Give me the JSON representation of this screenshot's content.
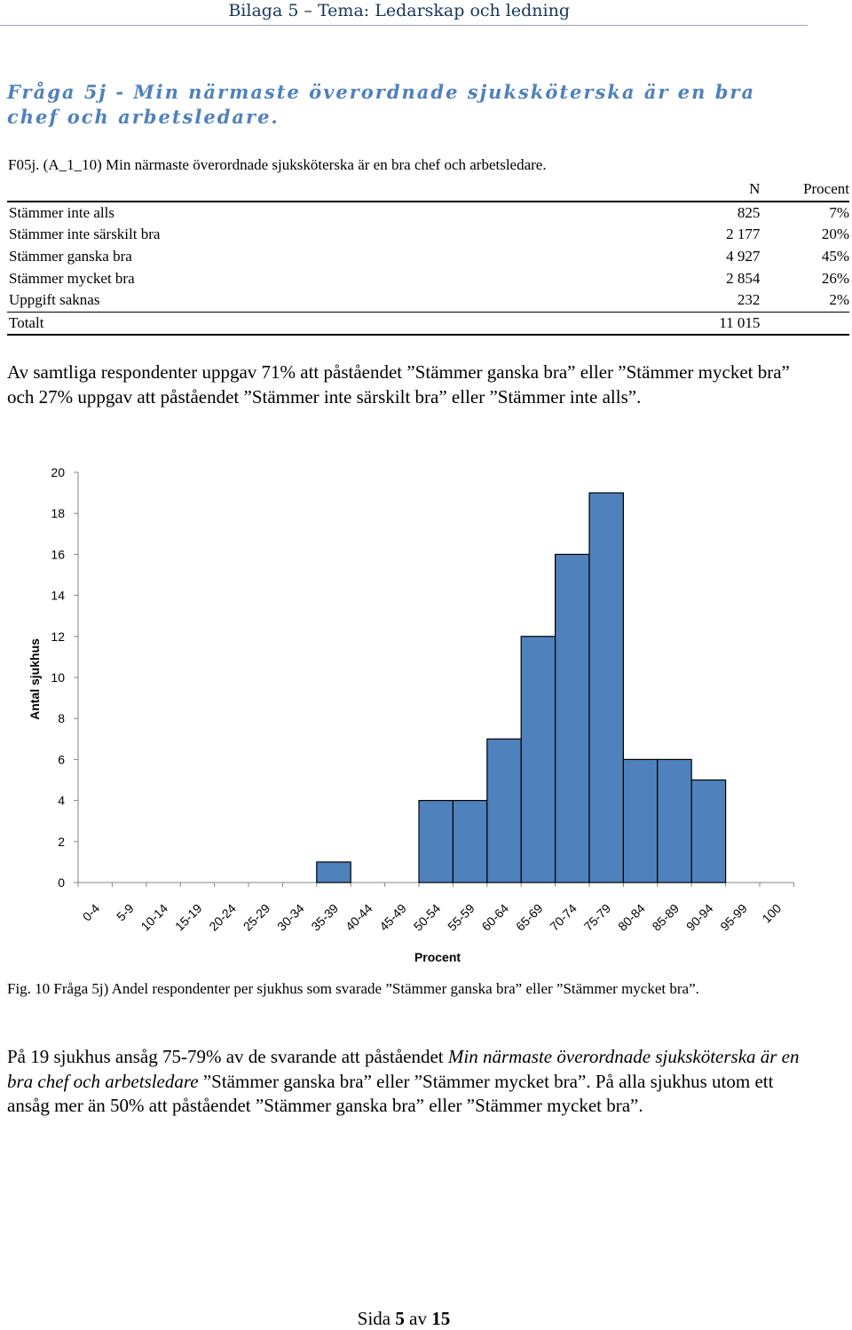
{
  "header": {
    "title": "Bilaga 5 – Tema: Ledarskap och ledning"
  },
  "question": "Fråga 5j - Min närmaste överordnade sjuksköterska är en bra chef och arbetsledare.",
  "table": {
    "title": "F05j. (A_1_10) Min närmaste överordnade sjuksköterska är en bra chef och arbetsledare.",
    "columns": [
      "N",
      "Procent"
    ],
    "rows": [
      {
        "label": "Stämmer inte alls",
        "n": "825",
        "pct": "7%"
      },
      {
        "label": "Stämmer inte särskilt bra",
        "n": "2 177",
        "pct": "20%"
      },
      {
        "label": "Stämmer ganska bra",
        "n": "4 927",
        "pct": "45%"
      },
      {
        "label": "Stämmer mycket bra",
        "n": "2 854",
        "pct": "26%"
      },
      {
        "label": "Uppgift saknas",
        "n": "232",
        "pct": "2%"
      }
    ],
    "total": {
      "label": "Totalt",
      "n": "11 015",
      "pct": ""
    }
  },
  "paragraph1": "Av samtliga respondenter uppgav 71% att påståendet ”Stämmer ganska bra” eller ”Stämmer mycket bra” och 27% uppgav att påståendet ”Stämmer inte särskilt bra” eller ”Stämmer inte alls”.",
  "chart_data": {
    "type": "bar",
    "categories": [
      "0-4",
      "5-9",
      "10-14",
      "15-19",
      "20-24",
      "25-29",
      "30-34",
      "35-39",
      "40-44",
      "45-49",
      "50-54",
      "55-59",
      "60-64",
      "65-69",
      "70-74",
      "75-79",
      "80-84",
      "85-89",
      "90-94",
      "95-99",
      "100"
    ],
    "values": [
      0,
      0,
      0,
      0,
      0,
      0,
      0,
      1,
      0,
      0,
      4,
      4,
      7,
      12,
      16,
      19,
      6,
      6,
      5,
      0,
      0
    ],
    "xlabel": "Procent",
    "ylabel": "Antal sjukhus",
    "ylim": [
      0,
      20
    ],
    "yticks": [
      0,
      2,
      4,
      6,
      8,
      10,
      12,
      14,
      16,
      18,
      20
    ],
    "bar_color": "#4f81bd",
    "grid": false
  },
  "caption": "Fig. 10 Fråga 5j) Andel respondenter per sjukhus som svarade ”Stämmer ganska bra” eller ”Stämmer mycket bra”.",
  "paragraph2": {
    "part1": "På 19 sjukhus ansåg 75-79% av de svarande att påståendet ",
    "italic": "Min närmaste överordnade sjuksköterska är en bra chef och arbetsledare",
    "part2": " ”Stämmer ganska bra” eller ”Stämmer mycket bra”. På alla sjukhus utom ett ansåg mer än 50% att påståendet ”Stämmer ganska bra” eller ”Stämmer mycket bra”."
  },
  "footer": {
    "prefix": "Sida ",
    "page": "5",
    "middle": " av ",
    "total": "15"
  }
}
